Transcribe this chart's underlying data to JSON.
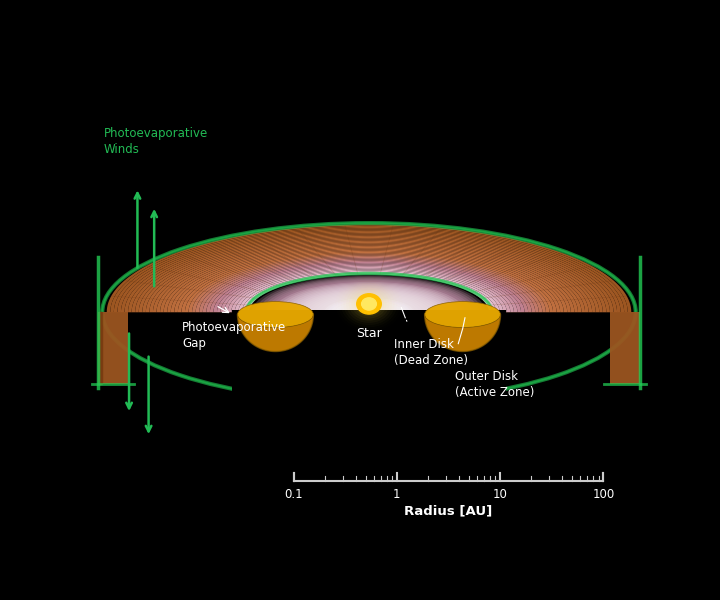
{
  "background_color": "#000000",
  "disk_brown": "#9B5520",
  "disk_brown_dark": "#6B3510",
  "disk_brown_light": "#C07040",
  "disk_brown_mid": "#8B4818",
  "disk_pink": "#C090A8",
  "disk_pink_light": "#E0C0D0",
  "disk_white": "#F0EEFF",
  "disk_purple": "#8B6090",
  "disk_purple_dark": "#5A3A6A",
  "disk_green": "#22CC55",
  "disk_green_dark": "#118833",
  "inner_disk_yellow": "#E8A800",
  "inner_disk_gold": "#C88000",
  "inner_disk_dark": "#8B6000",
  "star_yellow": "#FFC000",
  "star_bright": "#FFE860",
  "wind_green": "#22BB55",
  "white": "#FFFFFF",
  "labels": {
    "photoevaporative_winds": "Photoevaporative\nWinds",
    "photoevaporative_gap": "Photoevaporative\nGap",
    "inner_disk": "Inner Disk\n(Dead Zone)",
    "outer_disk": "Outer Disk\n(Active Zone)",
    "star": "Star",
    "radius_label": "Radius [AU]"
  },
  "scale_ticks": [
    "0.1",
    "1",
    "10",
    "100"
  ]
}
